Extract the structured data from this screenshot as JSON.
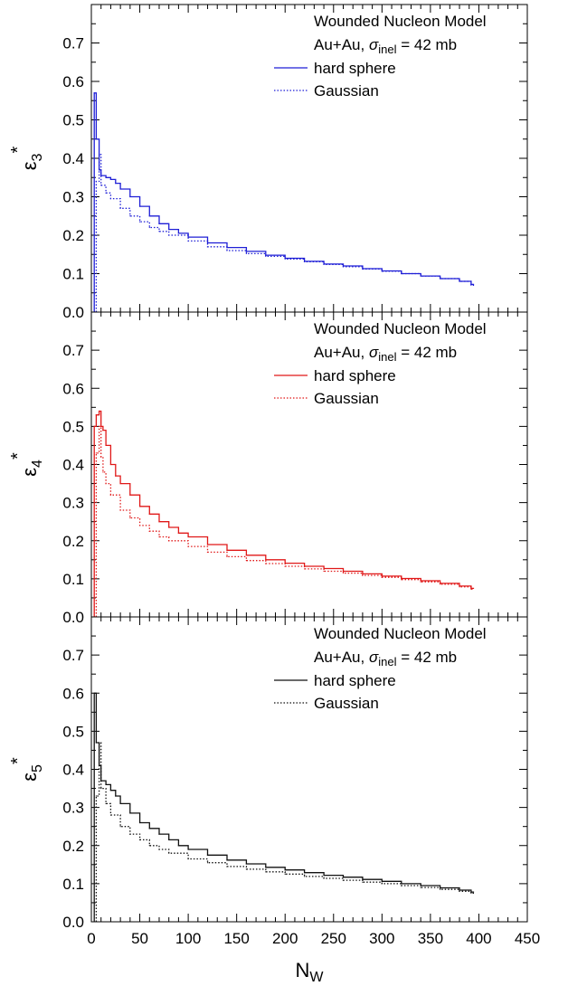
{
  "chart_data": {
    "type": "line",
    "layout": "three vertically stacked panels sharing the x axis",
    "xlabel_main": "N",
    "xlabel_sub": "W",
    "xlim": [
      0,
      450
    ],
    "ylim": [
      0,
      0.8
    ],
    "xticks": [
      "0",
      "50",
      "100",
      "150",
      "200",
      "250",
      "300",
      "350",
      "400",
      "450"
    ],
    "yticks": [
      "0.0",
      "0.1",
      "0.2",
      "0.3",
      "0.4",
      "0.5",
      "0.6",
      "0.7"
    ],
    "grid": false,
    "line_style": "step histogram",
    "panels": [
      {
        "ylabel_symbol": "ε",
        "ylabel_sub": "3",
        "ylabel_sup": "*",
        "color": "#1f1fd6",
        "legend": {
          "title": "Wounded Nucleon Model",
          "system": "Au+Au, ",
          "sigma": "σ",
          "sigma_sub": "inel",
          "sigma_value": " = 42 mb",
          "placement": "top-right"
        },
        "series": [
          {
            "name": "hard sphere",
            "style": "solid",
            "x": [
              3,
              5,
              8,
              10,
              15,
              20,
              25,
              30,
              40,
              50,
              60,
              70,
              80,
              90,
              100,
              120,
              140,
              160,
              180,
              200,
              220,
              240,
              260,
              280,
              300,
              320,
              340,
              360,
              380,
              392
            ],
            "y": [
              0.57,
              0.45,
              0.37,
              0.355,
              0.35,
              0.345,
              0.335,
              0.32,
              0.3,
              0.275,
              0.25,
              0.23,
              0.215,
              0.205,
              0.195,
              0.18,
              0.168,
              0.158,
              0.148,
              0.14,
              0.132,
              0.125,
              0.12,
              0.113,
              0.107,
              0.1,
              0.094,
              0.087,
              0.08,
              0.072
            ]
          },
          {
            "name": "Gaussian",
            "style": "dotted",
            "x": [
              5,
              8,
              10,
              15,
              20,
              30,
              40,
              50,
              60,
              70,
              80,
              100,
              120,
              140,
              160,
              180,
              200,
              220,
              240,
              260,
              280,
              300,
              320,
              340,
              360,
              380,
              392
            ],
            "y": [
              0.34,
              0.41,
              0.33,
              0.31,
              0.295,
              0.27,
              0.25,
              0.235,
              0.22,
              0.21,
              0.2,
              0.185,
              0.17,
              0.16,
              0.152,
              0.145,
              0.138,
              0.131,
              0.124,
              0.118,
              0.112,
              0.106,
              0.1,
              0.094,
              0.087,
              0.08,
              0.07
            ]
          }
        ]
      },
      {
        "ylabel_symbol": "ε",
        "ylabel_sub": "4",
        "ylabel_sup": "*",
        "color": "#e01818",
        "legend": {
          "title": "Wounded Nucleon Model",
          "system": "Au+Au, ",
          "sigma": "σ",
          "sigma_sub": "inel",
          "sigma_value": " = 42 mb",
          "placement": "top-right"
        },
        "series": [
          {
            "name": "hard sphere",
            "style": "solid",
            "x": [
              3,
              5,
              8,
              10,
              12,
              15,
              20,
              25,
              30,
              40,
              50,
              60,
              70,
              80,
              90,
              100,
              120,
              140,
              160,
              180,
              200,
              220,
              240,
              260,
              280,
              300,
              320,
              340,
              360,
              380,
              392
            ],
            "y": [
              0.5,
              0.53,
              0.54,
              0.5,
              0.49,
              0.45,
              0.4,
              0.37,
              0.35,
              0.32,
              0.29,
              0.27,
              0.25,
              0.235,
              0.22,
              0.21,
              0.19,
              0.175,
              0.162,
              0.15,
              0.141,
              0.133,
              0.127,
              0.12,
              0.113,
              0.107,
              0.101,
              0.095,
              0.088,
              0.081,
              0.075
            ]
          },
          {
            "name": "Gaussian",
            "style": "dotted",
            "x": [
              5,
              8,
              10,
              12,
              15,
              20,
              30,
              40,
              50,
              60,
              70,
              80,
              100,
              120,
              140,
              160,
              180,
              200,
              220,
              240,
              260,
              280,
              300,
              320,
              340,
              360,
              380,
              392
            ],
            "y": [
              0.43,
              0.5,
              0.42,
              0.38,
              0.35,
              0.32,
              0.28,
              0.26,
              0.24,
              0.225,
              0.21,
              0.2,
              0.185,
              0.17,
              0.158,
              0.148,
              0.14,
              0.133,
              0.126,
              0.12,
              0.115,
              0.109,
              0.104,
              0.098,
              0.092,
              0.086,
              0.079,
              0.073
            ]
          }
        ]
      },
      {
        "ylabel_symbol": "ε",
        "ylabel_sub": "5",
        "ylabel_sup": "*",
        "color": "#111111",
        "legend": {
          "title": "Wounded Nucleon Model",
          "system": "Au+Au, ",
          "sigma": "σ",
          "sigma_sub": "inel",
          "sigma_value": " = 42 mb",
          "placement": "top-right"
        },
        "series": [
          {
            "name": "hard sphere",
            "style": "solid",
            "x": [
              3,
              5,
              8,
              10,
              15,
              20,
              25,
              30,
              40,
              50,
              60,
              70,
              80,
              90,
              100,
              120,
              140,
              160,
              180,
              200,
              220,
              240,
              260,
              280,
              300,
              320,
              340,
              360,
              380,
              392
            ],
            "y": [
              0.6,
              0.47,
              0.41,
              0.37,
              0.36,
              0.345,
              0.33,
              0.31,
              0.285,
              0.26,
              0.245,
              0.23,
              0.215,
              0.2,
              0.19,
              0.175,
              0.162,
              0.152,
              0.143,
              0.136,
              0.129,
              0.122,
              0.117,
              0.111,
              0.106,
              0.1,
              0.095,
              0.089,
              0.083,
              0.078
            ]
          },
          {
            "name": "Gaussian",
            "style": "dotted",
            "x": [
              5,
              8,
              10,
              15,
              20,
              30,
              40,
              50,
              60,
              70,
              80,
              100,
              120,
              140,
              160,
              180,
              200,
              220,
              240,
              260,
              280,
              300,
              320,
              340,
              360,
              380,
              392
            ],
            "y": [
              0.33,
              0.47,
              0.35,
              0.31,
              0.28,
              0.25,
              0.23,
              0.215,
              0.2,
              0.19,
              0.18,
              0.165,
              0.155,
              0.145,
              0.138,
              0.131,
              0.125,
              0.119,
              0.114,
              0.109,
              0.104,
              0.1,
              0.095,
              0.09,
              0.085,
              0.08,
              0.075
            ]
          }
        ]
      }
    ]
  }
}
